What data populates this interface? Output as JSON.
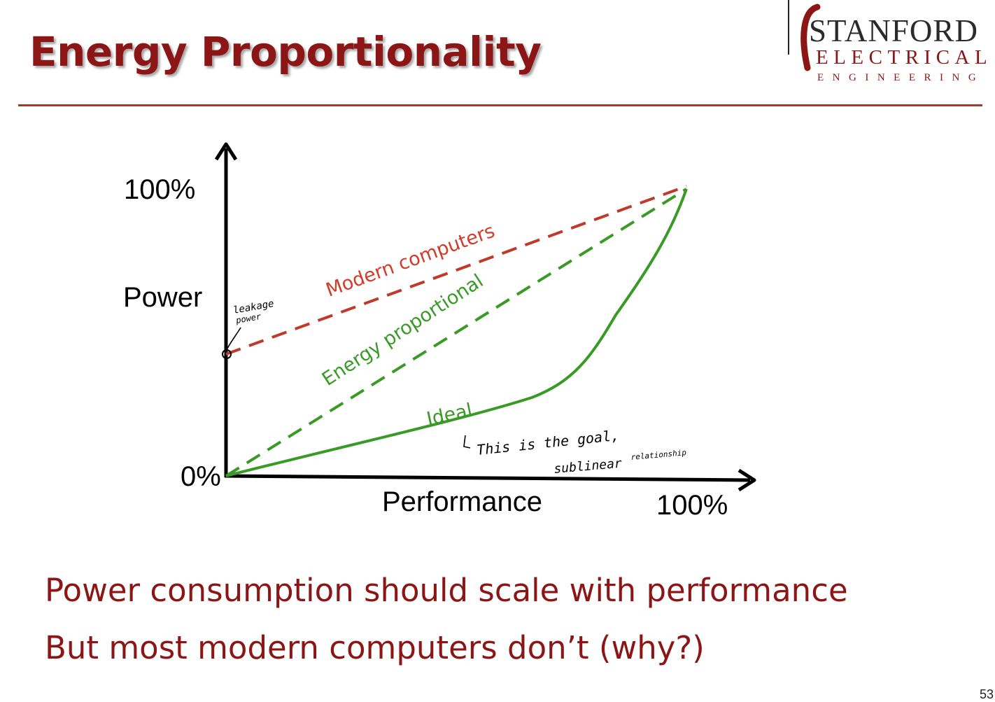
{
  "slide": {
    "title": "Energy Proportionality",
    "slide_number": "53",
    "bullets": [
      "Power consumption should scale with performance",
      "But most modern computers don’t (why?)"
    ]
  },
  "logo": {
    "main": "STANFORD",
    "sub": "ELECTRICAL",
    "eng": "ENGINEERING"
  },
  "diagram": {
    "y_axis_label": "Power",
    "x_axis_label": "Performance",
    "y_top_label": "100%",
    "origin_label": "0%",
    "x_right_label": "100%",
    "curves": {
      "modern": {
        "label": "Modern computers",
        "color": "#c0392b"
      },
      "proportional": {
        "label": "Energy proportional",
        "color": "#3a9a26"
      },
      "ideal": {
        "label": "Ideal",
        "color": "#3a9a26"
      }
    },
    "annotations": {
      "leakage_line1": "leakage",
      "leakage_line2": "power",
      "goal_line1": "This is the goal,",
      "goal_line2": "sublinear",
      "goal_line3": "relationship"
    }
  }
}
